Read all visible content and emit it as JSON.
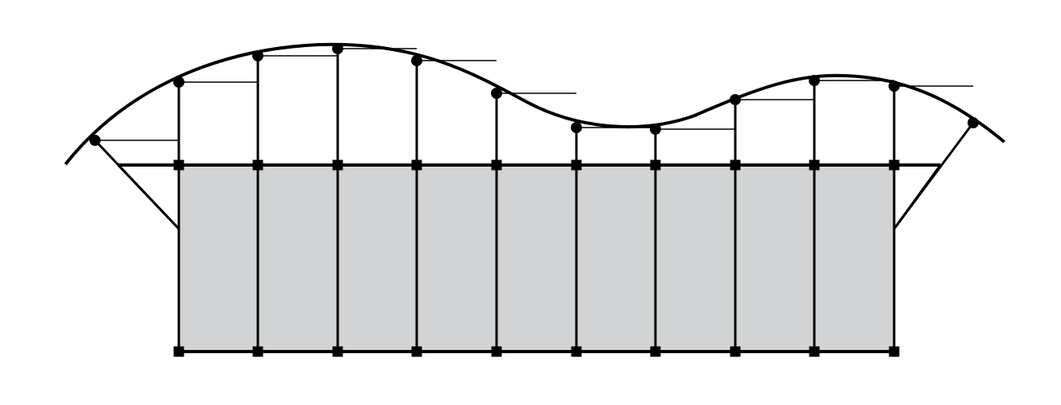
{
  "colors": {
    "background": "#ffffff",
    "panel_fill": "#d1d3d4",
    "stroke": "#000000"
  },
  "structure": {
    "bay_count": 9,
    "column_line_count": 10,
    "roof_node_count": 12
  }
}
